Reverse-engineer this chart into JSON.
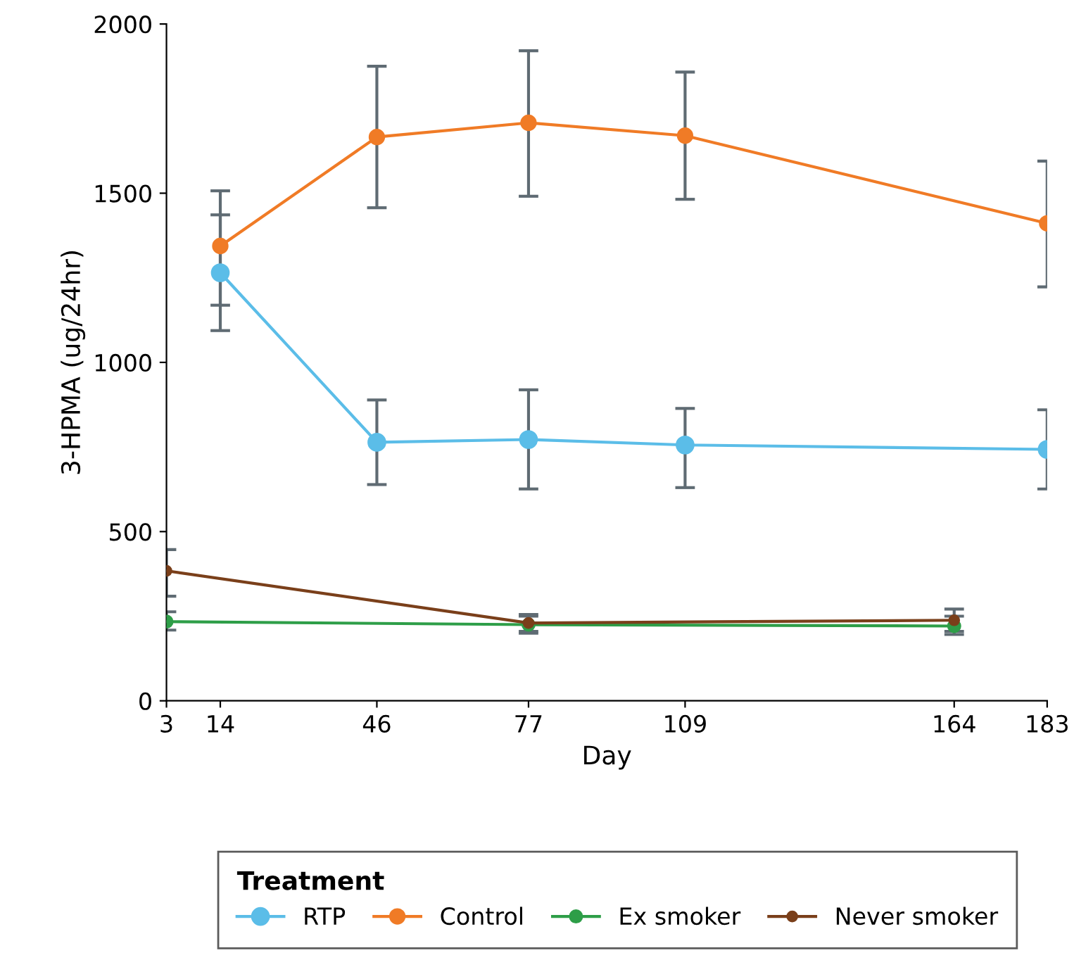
{
  "chart_data": {
    "type": "line",
    "xlabel": "Day",
    "ylabel": "3-HPMA (ug/24hr)",
    "legend_title": "Treatment",
    "legend": "bottom",
    "grid": false,
    "marker": "circle",
    "line_style": "solid",
    "xlim": [
      3,
      183
    ],
    "xticks": [
      3,
      14,
      46,
      77,
      109,
      164,
      183
    ],
    "ylim": [
      0,
      2000
    ],
    "yticks": [
      0,
      500,
      1000,
      1500,
      2000
    ],
    "series": [
      {
        "name": "RTP",
        "color": "#5bbde8",
        "x": [
          14,
          46,
          77,
          109,
          183
        ],
        "values": [
          1265,
          764,
          772,
          756,
          743
        ],
        "errors": [
          [
            1094,
            1436
          ],
          [
            639,
            889
          ],
          [
            626,
            919
          ],
          [
            630,
            864
          ],
          [
            626,
            860
          ]
        ]
      },
      {
        "name": "Control",
        "color": "#f07b26",
        "x": [
          14,
          46,
          77,
          109,
          183
        ],
        "values": [
          1344,
          1666,
          1708,
          1670,
          1411
        ],
        "errors": [
          [
            1169,
            1507
          ],
          [
            1457,
            1875
          ],
          [
            1491,
            1921
          ],
          [
            1482,
            1858
          ],
          [
            1223,
            1595
          ]
        ]
      },
      {
        "name": "Ex smoker",
        "color": "#2e9e48",
        "x": [
          3,
          77,
          164
        ],
        "values": [
          234,
          225,
          221
        ],
        "errors": [
          [
            209,
            263
          ],
          [
            200,
            250
          ],
          [
            196,
            250
          ]
        ]
      },
      {
        "name": "Never smoker",
        "color": "#7a3f1a",
        "x": [
          3,
          77,
          164
        ],
        "values": [
          384,
          230,
          238
        ],
        "errors": [
          [
            309,
            447
          ],
          [
            205,
            255
          ],
          [
            205,
            271
          ]
        ]
      }
    ]
  }
}
